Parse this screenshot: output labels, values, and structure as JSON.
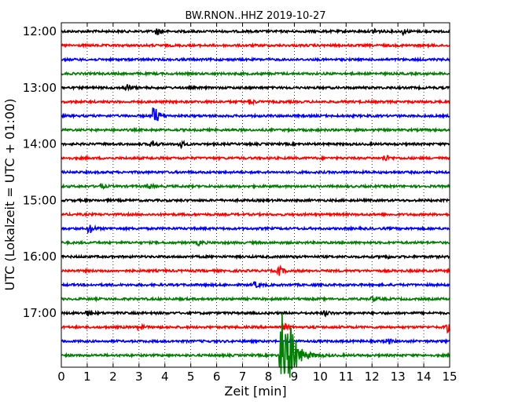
{
  "chart_data": {
    "type": "line",
    "title": "BW.RNON..HHZ 2019-10-27",
    "xlabel": "Zeit  [min]",
    "ylabel": "UTC (Lokalzeit = UTC + 01:00)",
    "xlim": [
      0,
      15
    ],
    "x_ticks": [
      "0",
      "1",
      "2",
      "3",
      "4",
      "5",
      "6",
      "7",
      "8",
      "9",
      "10",
      "11",
      "12",
      "13",
      "14",
      "15"
    ],
    "y_tick_labels": [
      "12:00",
      "13:00",
      "14:00",
      "15:00",
      "16:00",
      "17:00"
    ],
    "grid": "vertical dotted",
    "trace_interval_min": 15,
    "traces": [
      {
        "start": "12:00",
        "color": "#000000",
        "events": [
          {
            "t": 3.7,
            "amp": 0.3
          },
          {
            "t": 12.1,
            "amp": 0.25
          },
          {
            "t": 13.2,
            "amp": 0.25
          }
        ]
      },
      {
        "start": "12:15",
        "color": "#ff0000",
        "events": []
      },
      {
        "start": "12:30",
        "color": "#0000ff",
        "events": []
      },
      {
        "start": "12:45",
        "color": "#008000",
        "events": []
      },
      {
        "start": "13:00",
        "color": "#000000",
        "events": [
          {
            "t": 2.5,
            "amp": 0.35
          }
        ]
      },
      {
        "start": "13:15",
        "color": "#ff0000",
        "events": [
          {
            "t": 7.3,
            "amp": 0.25
          }
        ]
      },
      {
        "start": "13:30",
        "color": "#0000ff",
        "events": [
          {
            "t": 3.6,
            "amp": 1.0
          }
        ]
      },
      {
        "start": "13:45",
        "color": "#008000",
        "events": []
      },
      {
        "start": "14:00",
        "color": "#000000",
        "events": [
          {
            "t": 3.5,
            "amp": 0.3
          },
          {
            "t": 4.6,
            "amp": 0.3
          }
        ]
      },
      {
        "start": "14:15",
        "color": "#ff0000",
        "events": [
          {
            "t": 12.5,
            "amp": 0.3
          }
        ]
      },
      {
        "start": "14:30",
        "color": "#0000ff",
        "events": []
      },
      {
        "start": "14:45",
        "color": "#008000",
        "events": [
          {
            "t": 1.5,
            "amp": 0.2
          },
          {
            "t": 3.4,
            "amp": 0.2
          }
        ]
      },
      {
        "start": "15:00",
        "color": "#000000",
        "events": []
      },
      {
        "start": "15:15",
        "color": "#ff0000",
        "events": []
      },
      {
        "start": "15:30",
        "color": "#0000ff",
        "events": [
          {
            "t": 1.1,
            "amp": 0.4
          }
        ]
      },
      {
        "start": "15:45",
        "color": "#008000",
        "events": [
          {
            "t": 5.3,
            "amp": 0.2
          }
        ]
      },
      {
        "start": "16:00",
        "color": "#000000",
        "events": [
          {
            "t": 12.5,
            "amp": 0.2
          }
        ]
      },
      {
        "start": "16:15",
        "color": "#ff0000",
        "events": [
          {
            "t": 8.4,
            "amp": 0.45
          }
        ]
      },
      {
        "start": "16:30",
        "color": "#0000ff",
        "events": [
          {
            "t": 7.5,
            "amp": 0.25
          }
        ]
      },
      {
        "start": "16:45",
        "color": "#008000",
        "events": [
          {
            "t": 12.0,
            "amp": 0.2
          }
        ]
      },
      {
        "start": "17:00",
        "color": "#000000",
        "events": [
          {
            "t": 1.0,
            "amp": 0.2
          },
          {
            "t": 10.2,
            "amp": 0.2
          }
        ]
      },
      {
        "start": "17:15",
        "color": "#ff0000",
        "events": [
          {
            "t": 3.0,
            "amp": 0.3
          },
          {
            "t": 8.6,
            "amp": 0.3
          },
          {
            "t": 14.9,
            "amp": 0.4
          }
        ]
      },
      {
        "start": "17:30",
        "color": "#0000ff",
        "events": [
          {
            "t": 12.6,
            "amp": 0.25
          }
        ]
      },
      {
        "start": "17:45",
        "color": "#008000",
        "events": [
          {
            "t": 8.5,
            "amp": 3.6
          },
          {
            "t": 8.9,
            "amp": 1.5
          }
        ]
      }
    ]
  }
}
